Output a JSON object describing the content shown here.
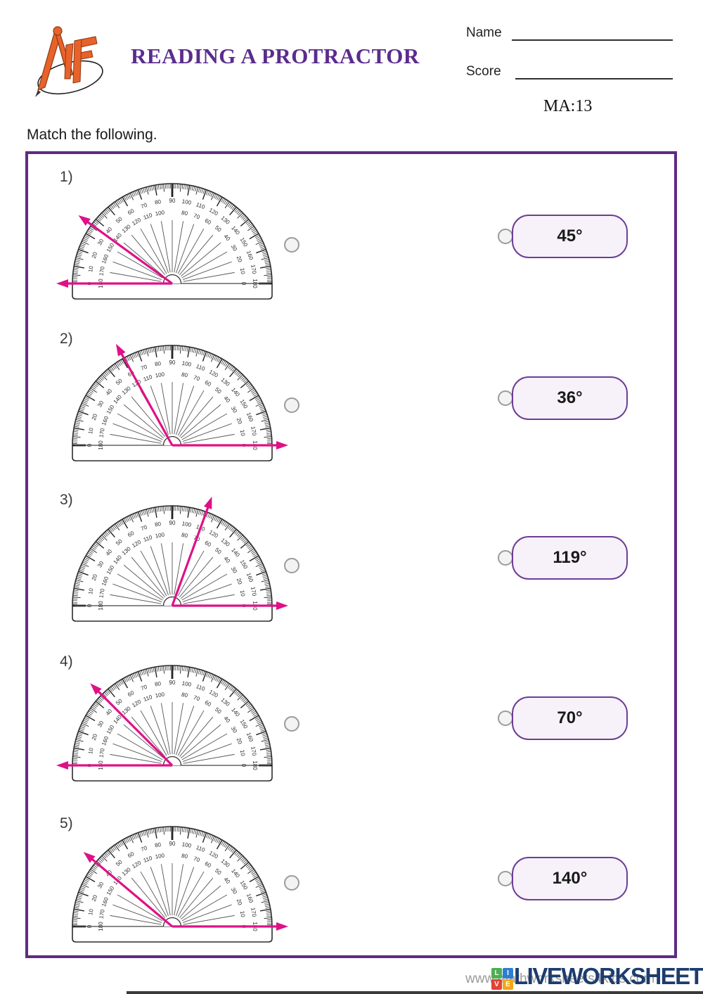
{
  "header": {
    "logo": "MF",
    "title": "READING A PROTRACTOR",
    "name_label": "Name",
    "score_label": "Score",
    "ma_code": "MA:13"
  },
  "instruction": "Match the following.",
  "protractor_scale": {
    "min": 0,
    "max": 180,
    "label_step": 10,
    "outer_scale_zero": "left",
    "inner_scale_zero": "right"
  },
  "problems": [
    {
      "number": "1)",
      "base_ray_deg": 180,
      "angle_ray_deg": 144
    },
    {
      "number": "2)",
      "base_ray_deg": 0,
      "angle_ray_deg": 119
    },
    {
      "number": "3)",
      "base_ray_deg": 0,
      "angle_ray_deg": 70
    },
    {
      "number": "4)",
      "base_ray_deg": 180,
      "angle_ray_deg": 135
    },
    {
      "number": "5)",
      "base_ray_deg": 0,
      "angle_ray_deg": 140
    }
  ],
  "answer_chips": [
    "45°",
    "36°",
    "119°",
    "70°",
    "140°"
  ],
  "footer": {
    "watermark": "www.mathworksheets4kids.com",
    "brand": "LIVEWORKSHEETS",
    "tiles": [
      "L",
      "I",
      "V",
      "E"
    ]
  },
  "colors": {
    "title": "#5B2C8D",
    "box_border": "#5E2B84",
    "chip_border": "#6C3D96",
    "chip_bg": "#F7F2FA",
    "ray": "#DE1187",
    "logo_orange": "#E8622B",
    "brand_navy": "#1D3C6E",
    "tile_colors": [
      "#4CAF50",
      "#2F7FD0",
      "#E04438",
      "#F0A818"
    ]
  }
}
